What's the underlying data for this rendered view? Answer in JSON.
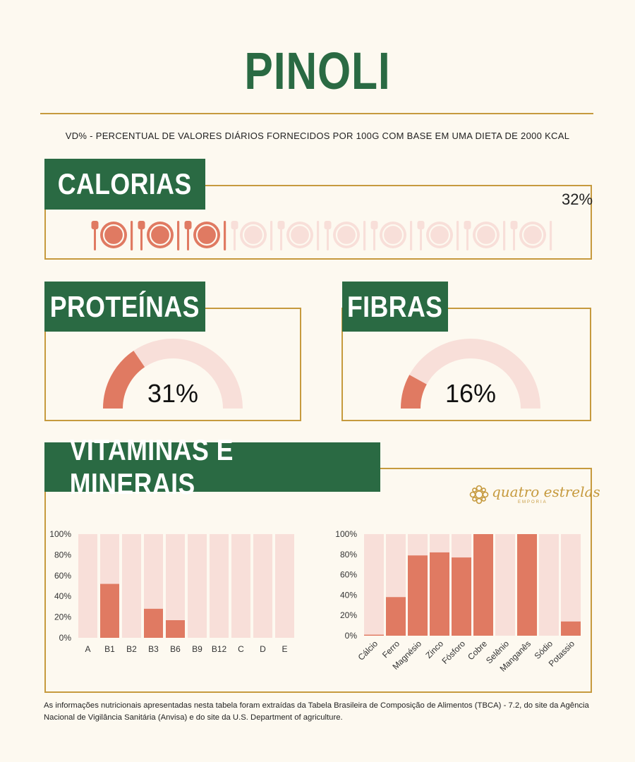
{
  "title": "PINOLI",
  "subtitle": "VD% - PERCENTUAL DE VALORES DIÁRIOS FORNECIDOS POR 100G COM BASE EM UMA DIETA DE 2000 KCAL",
  "colors": {
    "green": "#2a6a43",
    "gold": "#c69a3e",
    "accent": "#e07a62",
    "light": "#f8dfd9",
    "background": "#fdf9f0"
  },
  "calorias": {
    "label": "CALORIAS",
    "percent_text": "32%",
    "value": 32,
    "icon": "plate-with-cutlery-icon",
    "icon_count": 10,
    "filled_icons": 3
  },
  "proteinas": {
    "label": "PROTEÍNAS",
    "percent_text": "31%",
    "value": 31
  },
  "fibras": {
    "label": "FIBRAS",
    "percent_text": "16%",
    "value": 16
  },
  "vitaminas": {
    "label": "VITAMINAS E MINERAIS"
  },
  "logo": {
    "name": "quatro estrelas",
    "sub": "EMPORIA",
    "icon": "ornament-icon"
  },
  "footer": "As informações nutricionais apresentadas nesta tabela foram extraídas da Tabela Brasileira de Composição de Alimentos (TBCA) - 7.2, do site da Agência Nacional de Vigilância Sanitária (Anvisa) e do site da U.S. Department of agriculture.",
  "chart_data": [
    {
      "type": "bar",
      "categories": [
        "A",
        "B1",
        "B2",
        "B3",
        "B6",
        "B9",
        "B12",
        "C",
        "D",
        "E"
      ],
      "values": [
        0,
        52,
        0,
        28,
        17,
        0,
        0,
        0,
        0,
        0
      ],
      "ylim": [
        0,
        100
      ],
      "yticks": [
        "0%",
        "20%",
        "40%",
        "60%",
        "80%",
        "100%"
      ],
      "background_bars": true
    },
    {
      "type": "bar",
      "categories": [
        "Cálcio",
        "Ferro",
        "Magnésio",
        "Zinco",
        "Fósforo",
        "Cobre",
        "Selênio",
        "Manganês",
        "Sódio",
        "Potassio"
      ],
      "values": [
        1,
        38,
        79,
        82,
        77,
        100,
        0,
        100,
        0,
        14
      ],
      "ylim": [
        0,
        100
      ],
      "yticks": [
        "0%",
        "20%",
        "40%",
        "60%",
        "80%",
        "100%"
      ],
      "background_bars": true,
      "rotated_labels": true
    }
  ]
}
